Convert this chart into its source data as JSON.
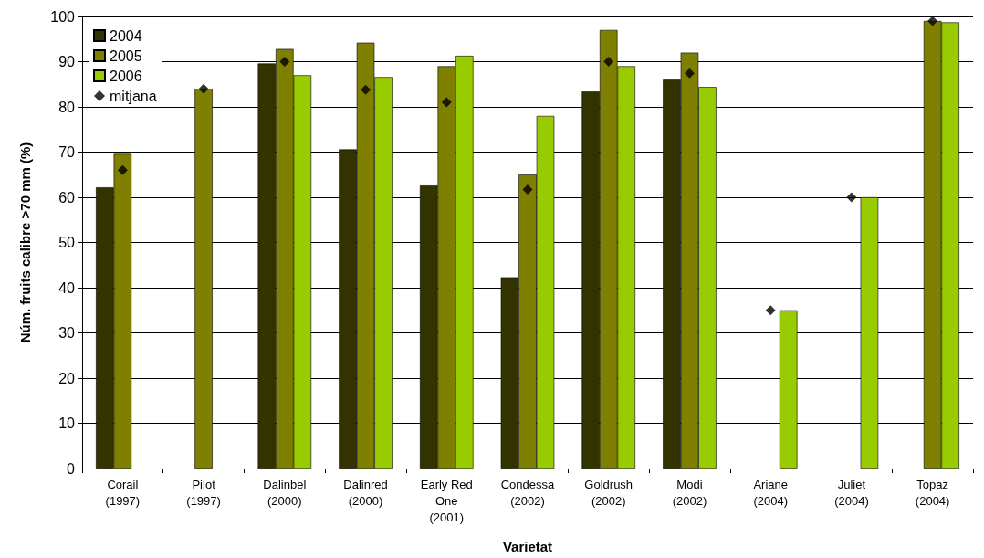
{
  "chart_data": {
    "type": "bar",
    "xlabel": "Varietat",
    "ylabel": "Núm. fruits calibre >70 mm (%)",
    "categories": [
      "Corail\n(1997)",
      "Pilot\n(1997)",
      "Dalinbel\n(2000)",
      "Dalinred\n(2000)",
      "Early Red\nOne\n(2001)",
      "Condessa\n(2002)",
      "Goldrush\n(2002)",
      "Modi\n(2002)",
      "Ariane\n(2004)",
      "Juliet\n(2004)",
      "Topaz\n(2004)"
    ],
    "series": [
      {
        "name": "2004",
        "color": "#333300",
        "values": [
          62.2,
          null,
          89.6,
          70.6,
          62.6,
          42.3,
          83.4,
          86,
          null,
          null,
          null
        ]
      },
      {
        "name": "2005",
        "color": "#808000",
        "values": [
          69.6,
          84,
          92.8,
          94.2,
          89,
          65,
          97,
          92,
          null,
          null,
          99
        ]
      },
      {
        "name": "2006",
        "color": "#99cc00",
        "values": [
          null,
          null,
          87,
          86.6,
          91.3,
          78,
          89,
          84.4,
          35,
          60,
          98.7
        ]
      },
      {
        "name": "mitjana",
        "type": "scatter",
        "color": "#000000",
        "values": [
          66,
          84,
          90,
          83.8,
          81,
          61.7,
          90,
          87.4,
          35,
          60,
          99
        ]
      }
    ],
    "marker": "diamond",
    "ylim": [
      0,
      100
    ],
    "yticks": [
      0,
      10,
      20,
      30,
      40,
      50,
      60,
      70,
      80,
      90,
      100
    ],
    "grid": "y",
    "legend": "top left"
  }
}
